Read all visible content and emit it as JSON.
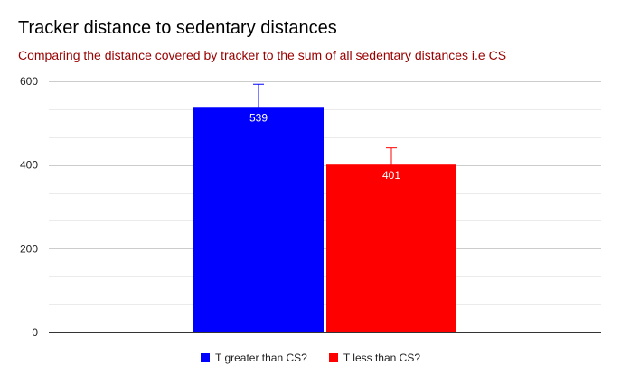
{
  "chart_data": {
    "type": "bar",
    "title": "Tracker distance to sedentary distances",
    "subtitle": "Comparing the distance covered by tracker to the sum of all sedentary distances i.e CS",
    "xlabel": "",
    "ylabel": "",
    "ylim": [
      0,
      600
    ],
    "yticks": [
      "0",
      "200",
      "400",
      "600"
    ],
    "grid": true,
    "legend_position": "bottom",
    "series": [
      {
        "name": "T greater than CS?",
        "value": 539,
        "label": "539",
        "error_low": 486,
        "error_high": 593,
        "color": "#0000ff"
      },
      {
        "name": "T less than CS?",
        "value": 401,
        "label": "401",
        "error_low": 362,
        "error_high": 441,
        "color": "#ff0000"
      }
    ]
  },
  "colors": {
    "subtitle": "#990000",
    "grid": "#d9d9d9",
    "axis": "#333333"
  }
}
